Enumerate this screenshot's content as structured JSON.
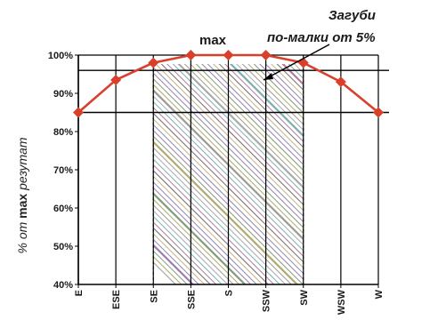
{
  "chart_data": {
    "type": "line",
    "categories": [
      "E",
      "ESE",
      "SE",
      "SSE",
      "S",
      "SSW",
      "SW",
      "WSW",
      "W"
    ],
    "series": [
      {
        "values": [
          85,
          93.5,
          98,
          100,
          100,
          100,
          98,
          93,
          85
        ],
        "color": "#d9402a"
      }
    ],
    "ylim": [
      40,
      100
    ],
    "yticks": [
      40,
      50,
      60,
      70,
      80,
      90,
      100
    ],
    "ytick_labels": [
      "40%",
      "50%",
      "60%",
      "70%",
      "80%",
      "90%",
      "100%"
    ],
    "ylabel_parts": {
      "pre": "% от ",
      "bold": "max",
      "post": " резутат"
    },
    "reference_lines": [
      85,
      96
    ],
    "shaded_range": [
      "SE",
      "SW"
    ],
    "grid": true,
    "annotations": {
      "max_label": "max",
      "loss_line1": "Загуби",
      "loss_line2": "по-малки от 5%"
    },
    "colors": {
      "line": "#d9402a",
      "marker": "#d9402a",
      "axis": "#000000"
    }
  }
}
